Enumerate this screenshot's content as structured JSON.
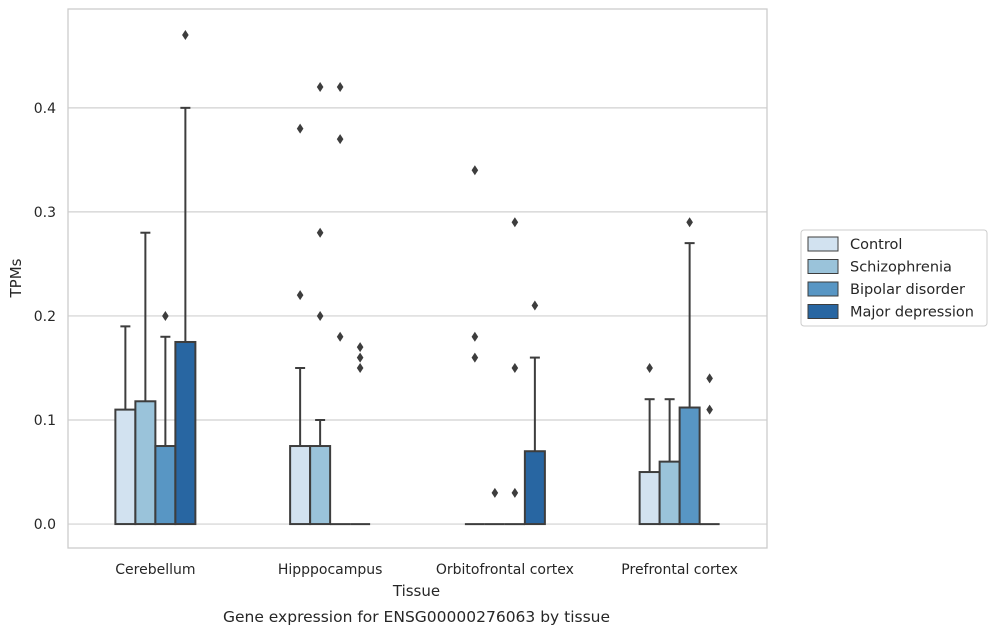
{
  "chart_data": {
    "type": "bar",
    "caption": "Gene expression for ENSG00000276063 by tissue",
    "xlabel": "Tissue",
    "ylabel": "TPMs",
    "ylim": [
      -0.023,
      0.495
    ],
    "yticks": [
      0.0,
      0.1,
      0.2,
      0.3,
      0.4
    ],
    "ytick_labels": [
      "0.0",
      "0.1",
      "0.2",
      "0.3",
      "0.4"
    ],
    "grid": "horizontal",
    "legend_position": "right",
    "categories": [
      "Cerebellum",
      "Hipppocampus",
      "Orbitofrontal cortex",
      "Prefrontal cortex"
    ],
    "series": [
      {
        "name": "Control",
        "color": "#d2e2f0",
        "values": [
          0.11,
          0.075,
          0.0,
          0.05
        ],
        "whisker_high": [
          0.19,
          0.15,
          null,
          0.12
        ],
        "outliers": [
          [],
          [
            0.22,
            0.38
          ],
          [
            0.16,
            0.18,
            0.34
          ],
          [
            0.15
          ]
        ]
      },
      {
        "name": "Schizophrenia",
        "color": "#9ac3da",
        "values": [
          0.118,
          0.075,
          0.0,
          0.06
        ],
        "whisker_high": [
          0.28,
          0.1,
          null,
          0.12
        ],
        "outliers": [
          [],
          [
            0.2,
            0.28,
            0.42
          ],
          [
            0.03
          ],
          []
        ]
      },
      {
        "name": "Bipolar disorder",
        "color": "#5896c4",
        "values": [
          0.075,
          0.0,
          0.0,
          0.112
        ],
        "whisker_high": [
          0.18,
          null,
          null,
          0.27
        ],
        "outliers": [
          [
            0.2
          ],
          [
            0.18,
            0.37,
            0.42
          ],
          [
            0.03,
            0.15,
            0.29
          ],
          [
            0.29
          ]
        ]
      },
      {
        "name": "Major depression",
        "color": "#2866a2",
        "values": [
          0.175,
          0.0,
          0.07,
          0.0
        ],
        "whisker_high": [
          0.4,
          null,
          0.16,
          null
        ],
        "outliers": [
          [
            0.47
          ],
          [
            0.15,
            0.16,
            0.17
          ],
          [
            0.21
          ],
          [
            0.11,
            0.14
          ]
        ]
      }
    ]
  }
}
